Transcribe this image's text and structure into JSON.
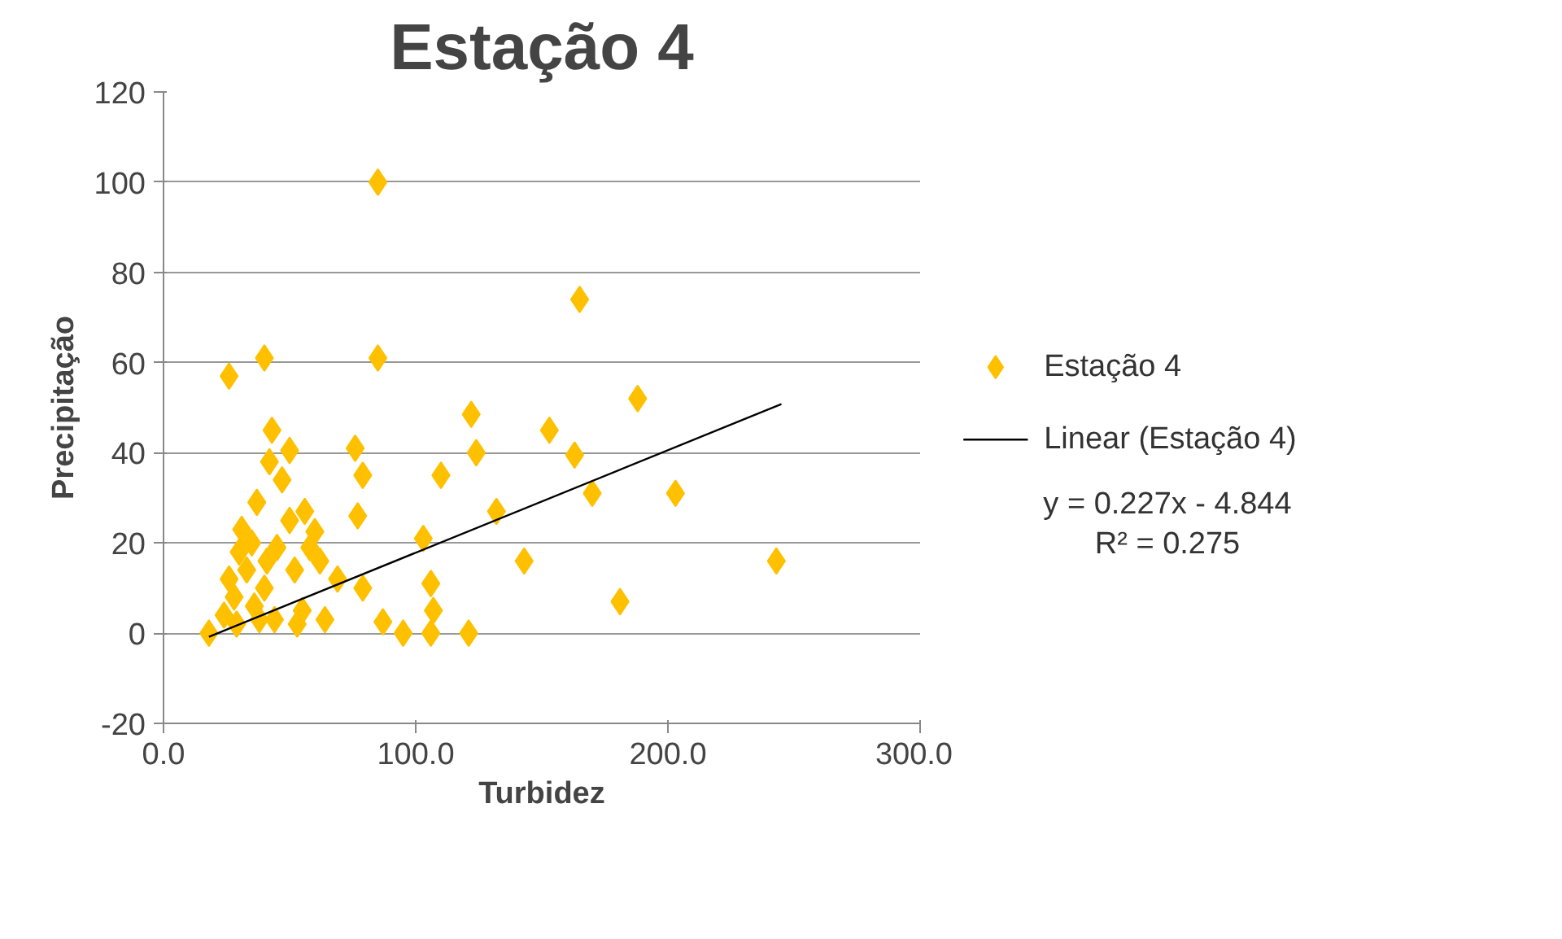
{
  "chart_data": {
    "type": "scatter",
    "title": "Estação 4",
    "xlabel": "Turbidez",
    "ylabel": "Precipitação",
    "xlim": [
      0,
      300
    ],
    "xticks": [
      {
        "value": 0,
        "label": "0.0"
      },
      {
        "value": 100,
        "label": "100.0"
      },
      {
        "value": 200,
        "label": "200.0"
      },
      {
        "value": 300,
        "label": "300.0"
      }
    ],
    "ylim": [
      -20,
      120
    ],
    "yticks": [
      -20,
      0,
      20,
      40,
      60,
      80,
      100,
      120
    ],
    "grid": "y",
    "legend": "right",
    "annotations": [
      "y = 0.227x - 4.844",
      "R² = 0.275"
    ],
    "series": [
      {
        "name": "Estação 4",
        "marker": "diamond",
        "color": "#ffc000",
        "x": [
          85,
          40,
          85,
          26,
          165,
          188,
          122,
          163,
          170,
          153,
          124,
          110,
          132,
          143,
          181,
          203,
          243,
          103,
          106,
          107,
          87,
          95,
          106,
          121,
          43,
          50,
          42,
          47,
          76,
          79,
          77,
          37,
          56,
          50,
          31,
          60,
          45,
          58,
          79,
          69,
          18,
          24,
          28,
          26,
          30,
          33,
          36,
          40,
          44,
          52,
          55,
          64,
          35,
          29,
          41,
          53,
          62,
          38
        ],
        "values": [
          100,
          61,
          61,
          57,
          74,
          52,
          48.5,
          39.5,
          31,
          45,
          40,
          35,
          27,
          16,
          7,
          31,
          16,
          21,
          11,
          5,
          2.5,
          0,
          0,
          0,
          45,
          40.5,
          38,
          34,
          41,
          35,
          26,
          29,
          27,
          25,
          23,
          22.5,
          19,
          19,
          10,
          12,
          0,
          4,
          8,
          12,
          18,
          14,
          6,
          10,
          3,
          14,
          5,
          3,
          20,
          2,
          16,
          2,
          16,
          3
        ]
      },
      {
        "name": "Linear (Estação 4)",
        "type": "line",
        "marker": "none",
        "color": "#000000",
        "x": [
          18,
          245
        ],
        "values": [
          -0.8,
          50.8
        ]
      }
    ]
  }
}
